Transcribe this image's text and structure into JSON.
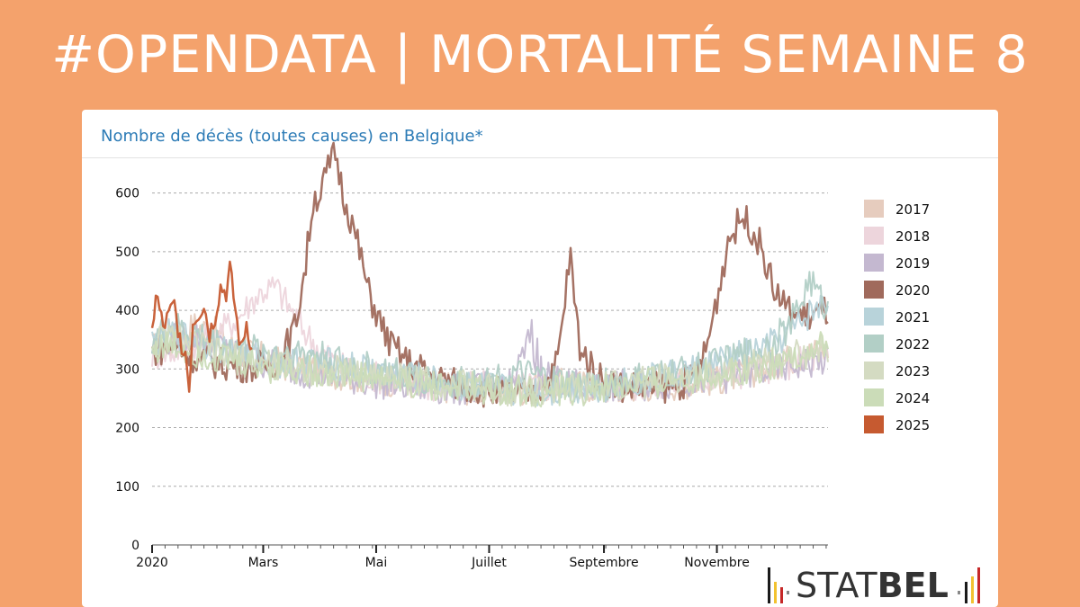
{
  "headline": "#OPENDATA | MORTALITÉ SEMAINE 8",
  "logo": {
    "text_light": "STAT",
    "text_bold": "BEL"
  },
  "chart_data": {
    "type": "line",
    "title": "Nombre de décès (toutes causes) en Belgique*",
    "xlabel": "",
    "ylabel": "",
    "ylim": [
      0,
      650
    ],
    "yticks": [
      0,
      100,
      200,
      300,
      400,
      500,
      600
    ],
    "x_unit": "day-of-year",
    "xlim": [
      1,
      366
    ],
    "xticks": [
      {
        "day": 1,
        "label": "2020"
      },
      {
        "day": 61,
        "label": "Mars"
      },
      {
        "day": 122,
        "label": "Mai"
      },
      {
        "day": 183,
        "label": "Juillet"
      },
      {
        "day": 245,
        "label": "Septembre"
      },
      {
        "day": 306,
        "label": "Novembre"
      }
    ],
    "grid": true,
    "legend_position": "right",
    "series": [
      {
        "name": "2017",
        "color": "#E6CCBE",
        "points": [
          [
            1,
            335
          ],
          [
            12,
            345
          ],
          [
            24,
            375
          ],
          [
            36,
            360
          ],
          [
            48,
            330
          ],
          [
            60,
            320
          ],
          [
            75,
            305
          ],
          [
            90,
            300
          ],
          [
            105,
            290
          ],
          [
            120,
            285
          ],
          [
            135,
            278
          ],
          [
            150,
            272
          ],
          [
            165,
            268
          ],
          [
            180,
            265
          ],
          [
            195,
            262
          ],
          [
            210,
            270
          ],
          [
            225,
            275
          ],
          [
            240,
            270
          ],
          [
            255,
            268
          ],
          [
            270,
            272
          ],
          [
            285,
            275
          ],
          [
            300,
            280
          ],
          [
            315,
            288
          ],
          [
            330,
            300
          ],
          [
            345,
            318
          ],
          [
            366,
            335
          ]
        ]
      },
      {
        "name": "2018",
        "color": "#EDD5DC",
        "points": [
          [
            1,
            325
          ],
          [
            12,
            330
          ],
          [
            24,
            345
          ],
          [
            36,
            360
          ],
          [
            48,
            390
          ],
          [
            56,
            420
          ],
          [
            62,
            435
          ],
          [
            68,
            440
          ],
          [
            74,
            410
          ],
          [
            82,
            370
          ],
          [
            92,
            330
          ],
          [
            105,
            300
          ],
          [
            120,
            288
          ],
          [
            135,
            280
          ],
          [
            150,
            272
          ],
          [
            165,
            268
          ],
          [
            180,
            270
          ],
          [
            195,
            268
          ],
          [
            210,
            272
          ],
          [
            225,
            268
          ],
          [
            240,
            265
          ],
          [
            255,
            270
          ],
          [
            270,
            275
          ],
          [
            285,
            278
          ],
          [
            300,
            285
          ],
          [
            315,
            292
          ],
          [
            330,
            300
          ],
          [
            345,
            310
          ],
          [
            366,
            322
          ]
        ]
      },
      {
        "name": "2019",
        "color": "#C4B8D0",
        "points": [
          [
            1,
            335
          ],
          [
            12,
            350
          ],
          [
            24,
            355
          ],
          [
            36,
            340
          ],
          [
            48,
            320
          ],
          [
            60,
            312
          ],
          [
            75,
            300
          ],
          [
            90,
            292
          ],
          [
            105,
            285
          ],
          [
            120,
            278
          ],
          [
            135,
            272
          ],
          [
            150,
            268
          ],
          [
            165,
            265
          ],
          [
            180,
            268
          ],
          [
            195,
            270
          ],
          [
            210,
            280
          ],
          [
            208,
            300
          ],
          [
            206,
            360
          ],
          [
            208,
            420
          ],
          [
            211,
            300
          ],
          [
            225,
            272
          ],
          [
            240,
            268
          ],
          [
            255,
            270
          ],
          [
            270,
            272
          ],
          [
            285,
            278
          ],
          [
            300,
            282
          ],
          [
            315,
            288
          ],
          [
            330,
            295
          ],
          [
            345,
            305
          ],
          [
            366,
            315
          ]
        ]
      },
      {
        "name": "2020",
        "color": "#A06A5C",
        "points": [
          [
            1,
            330
          ],
          [
            12,
            340
          ],
          [
            24,
            320
          ],
          [
            36,
            310
          ],
          [
            48,
            305
          ],
          [
            60,
            305
          ],
          [
            70,
            315
          ],
          [
            78,
            370
          ],
          [
            84,
            480
          ],
          [
            88,
            590
          ],
          [
            92,
            600
          ],
          [
            96,
            640
          ],
          [
            100,
            670
          ],
          [
            104,
            600
          ],
          [
            108,
            560
          ],
          [
            113,
            500
          ],
          [
            118,
            430
          ],
          [
            124,
            380
          ],
          [
            130,
            340
          ],
          [
            140,
            310
          ],
          [
            155,
            285
          ],
          [
            170,
            270
          ],
          [
            185,
            260
          ],
          [
            200,
            255
          ],
          [
            210,
            265
          ],
          [
            218,
            290
          ],
          [
            222,
            360
          ],
          [
            225,
            450
          ],
          [
            227,
            490
          ],
          [
            229,
            420
          ],
          [
            232,
            340
          ],
          [
            240,
            290
          ],
          [
            255,
            270
          ],
          [
            270,
            268
          ],
          [
            285,
            272
          ],
          [
            295,
            290
          ],
          [
            300,
            330
          ],
          [
            304,
            390
          ],
          [
            308,
            450
          ],
          [
            312,
            520
          ],
          [
            316,
            540
          ],
          [
            320,
            560
          ],
          [
            324,
            545
          ],
          [
            328,
            520
          ],
          [
            332,
            490
          ],
          [
            336,
            440
          ],
          [
            340,
            420
          ],
          [
            346,
            395
          ],
          [
            356,
            390
          ],
          [
            366,
            400
          ]
        ]
      },
      {
        "name": "2021",
        "color": "#B8D3DA",
        "points": [
          [
            1,
            345
          ],
          [
            12,
            360
          ],
          [
            24,
            350
          ],
          [
            36,
            335
          ],
          [
            48,
            325
          ],
          [
            60,
            318
          ],
          [
            75,
            310
          ],
          [
            90,
            312
          ],
          [
            105,
            305
          ],
          [
            120,
            298
          ],
          [
            135,
            290
          ],
          [
            150,
            280
          ],
          [
            165,
            272
          ],
          [
            180,
            268
          ],
          [
            195,
            265
          ],
          [
            210,
            262
          ],
          [
            225,
            265
          ],
          [
            240,
            270
          ],
          [
            255,
            275
          ],
          [
            270,
            282
          ],
          [
            285,
            292
          ],
          [
            300,
            305
          ],
          [
            315,
            318
          ],
          [
            330,
            332
          ],
          [
            340,
            350
          ],
          [
            350,
            375
          ],
          [
            358,
            400
          ],
          [
            366,
            410
          ]
        ]
      },
      {
        "name": "2022",
        "color": "#B2CFC6",
        "points": [
          [
            1,
            350
          ],
          [
            12,
            370
          ],
          [
            24,
            360
          ],
          [
            36,
            345
          ],
          [
            48,
            335
          ],
          [
            60,
            330
          ],
          [
            75,
            330
          ],
          [
            90,
            325
          ],
          [
            105,
            310
          ],
          [
            120,
            300
          ],
          [
            135,
            290
          ],
          [
            150,
            282
          ],
          [
            165,
            275
          ],
          [
            180,
            280
          ],
          [
            195,
            290
          ],
          [
            210,
            285
          ],
          [
            225,
            275
          ],
          [
            240,
            272
          ],
          [
            255,
            278
          ],
          [
            270,
            285
          ],
          [
            285,
            295
          ],
          [
            300,
            305
          ],
          [
            315,
            318
          ],
          [
            330,
            335
          ],
          [
            345,
            370
          ],
          [
            352,
            420
          ],
          [
            356,
            455
          ],
          [
            362,
            420
          ],
          [
            366,
            400
          ]
        ]
      },
      {
        "name": "2023",
        "color": "#D4DBC2",
        "points": [
          [
            1,
            345
          ],
          [
            12,
            355
          ],
          [
            24,
            340
          ],
          [
            36,
            325
          ],
          [
            48,
            315
          ],
          [
            60,
            310
          ],
          [
            75,
            305
          ],
          [
            90,
            298
          ],
          [
            105,
            295
          ],
          [
            120,
            290
          ],
          [
            135,
            285
          ],
          [
            150,
            278
          ],
          [
            165,
            272
          ],
          [
            180,
            268
          ],
          [
            195,
            265
          ],
          [
            210,
            262
          ],
          [
            225,
            265
          ],
          [
            240,
            268
          ],
          [
            255,
            272
          ],
          [
            270,
            278
          ],
          [
            285,
            285
          ],
          [
            300,
            290
          ],
          [
            315,
            298
          ],
          [
            330,
            308
          ],
          [
            345,
            320
          ],
          [
            366,
            335
          ]
        ]
      },
      {
        "name": "2024",
        "color": "#CBDCB8",
        "points": [
          [
            1,
            335
          ],
          [
            12,
            340
          ],
          [
            24,
            330
          ],
          [
            36,
            320
          ],
          [
            48,
            312
          ],
          [
            60,
            305
          ],
          [
            75,
            300
          ],
          [
            90,
            295
          ],
          [
            105,
            290
          ],
          [
            120,
            285
          ],
          [
            135,
            280
          ],
          [
            150,
            274
          ],
          [
            165,
            270
          ],
          [
            180,
            266
          ],
          [
            195,
            262
          ],
          [
            210,
            260
          ],
          [
            225,
            262
          ],
          [
            240,
            265
          ],
          [
            255,
            270
          ],
          [
            270,
            275
          ],
          [
            285,
            282
          ],
          [
            300,
            288
          ],
          [
            315,
            296
          ],
          [
            330,
            305
          ],
          [
            345,
            318
          ],
          [
            366,
            340
          ]
        ]
      },
      {
        "name": "2025",
        "color": "#C65A30",
        "points": [
          [
            1,
            360
          ],
          [
            3,
            430
          ],
          [
            5,
            400
          ],
          [
            7,
            370
          ],
          [
            10,
            390
          ],
          [
            13,
            410
          ],
          [
            16,
            350
          ],
          [
            19,
            330
          ],
          [
            21,
            265
          ],
          [
            23,
            380
          ],
          [
            26,
            395
          ],
          [
            29,
            410
          ],
          [
            32,
            360
          ],
          [
            35,
            390
          ],
          [
            38,
            440
          ],
          [
            41,
            430
          ],
          [
            43,
            470
          ],
          [
            46,
            400
          ],
          [
            49,
            330
          ],
          [
            52,
            380
          ],
          [
            55,
            330
          ]
        ]
      }
    ]
  }
}
